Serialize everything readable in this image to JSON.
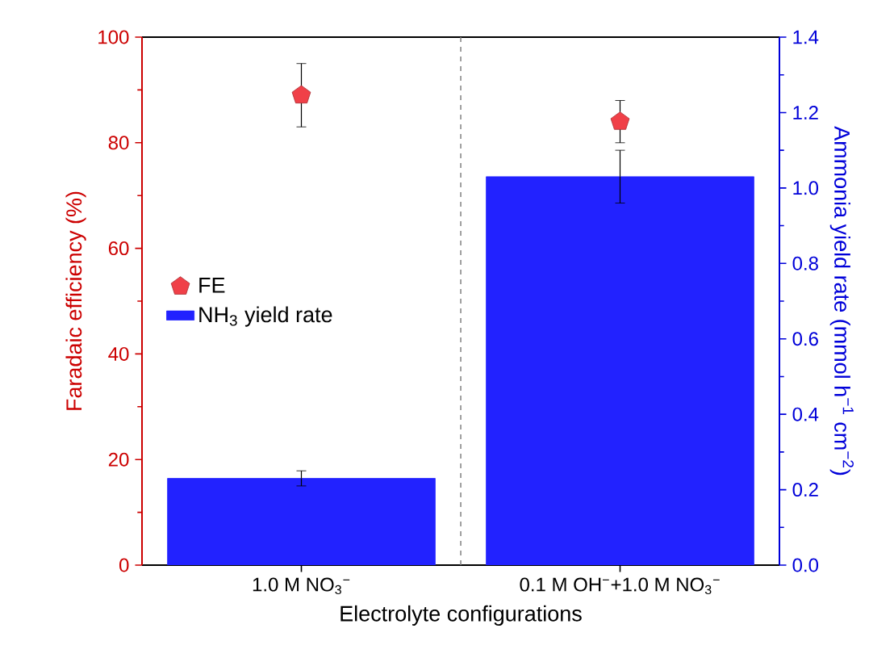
{
  "chart_data": {
    "type": "bar",
    "xlabel": "Electrolyte configurations",
    "ylabel": "Faradaic efficiency (%)",
    "y2label": "Ammonia yield rate (mmol h$^{−1}$ cm$^{−2}$)",
    "categories": [
      "1.0 M NO$_{3}$$^{−}$",
      "0.1 M OH$^{−}$+1.0 M NO$_{3}$$^{−}$"
    ],
    "series": [
      {
        "name": "NH$_{3}$ yield rate",
        "axis": "y2",
        "color": "#2222ff",
        "values": [
          0.23,
          1.03
        ],
        "errors": [
          0.02,
          0.07
        ]
      },
      {
        "name": "FE",
        "type": "scatter",
        "color": "#f04048",
        "values": [
          89,
          84
        ],
        "errors": [
          6,
          4
        ]
      }
    ],
    "ylim": [
      0,
      100
    ],
    "yticks": [
      0,
      20,
      40,
      60,
      80,
      100
    ],
    "y2lim": [
      0,
      1.4
    ],
    "y2ticks": [
      {
        "value": 0,
        "label": "0.0"
      },
      0.2,
      0.4,
      0.6,
      0.8,
      {
        "value": 1,
        "label": "1.0"
      },
      1.2,
      1.4
    ],
    "legend": "left"
  }
}
